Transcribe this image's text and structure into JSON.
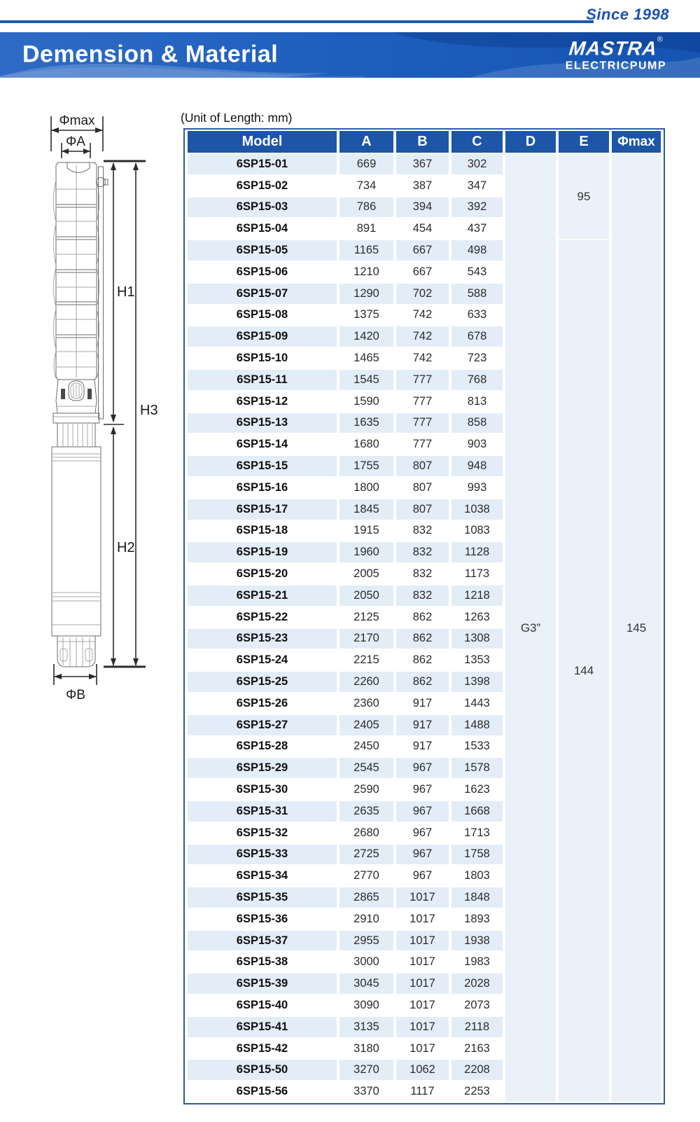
{
  "header": {
    "since": "Since 1998",
    "title": "Demension & Material",
    "brand": "MASTRA",
    "brand_registered": "®",
    "brand_sub": "ELECTRICPUMP"
  },
  "unit_note": "(Unit of Length: mm)",
  "diagram": {
    "labels": {
      "phi_max": "Φmax",
      "phi_a": "ΦA",
      "h1": "H1",
      "h3": "H3",
      "h2": "H2",
      "phi_b": "ΦB"
    }
  },
  "colors": {
    "accent_blue": "#1c57b2",
    "header_blue": "#1d55a7",
    "row_stripe_blue": "#e3edf8",
    "merged_cell_blue": "#eaf1f9"
  },
  "table": {
    "columns": [
      "Model",
      "A",
      "B",
      "C",
      "D",
      "E",
      "Φmax"
    ],
    "merged": {
      "d": "G3”",
      "e_top": "95",
      "e_top_rows": 4,
      "e_bottom": "144",
      "phi_max": "145"
    },
    "rows": [
      [
        "6SP15-01",
        "669",
        "367",
        "302"
      ],
      [
        "6SP15-02",
        "734",
        "387",
        "347"
      ],
      [
        "6SP15-03",
        "786",
        "394",
        "392"
      ],
      [
        "6SP15-04",
        "891",
        "454",
        "437"
      ],
      [
        "6SP15-05",
        "1165",
        "667",
        "498"
      ],
      [
        "6SP15-06",
        "1210",
        "667",
        "543"
      ],
      [
        "6SP15-07",
        "1290",
        "702",
        "588"
      ],
      [
        "6SP15-08",
        "1375",
        "742",
        "633"
      ],
      [
        "6SP15-09",
        "1420",
        "742",
        "678"
      ],
      [
        "6SP15-10",
        "1465",
        "742",
        "723"
      ],
      [
        "6SP15-11",
        "1545",
        "777",
        "768"
      ],
      [
        "6SP15-12",
        "1590",
        "777",
        "813"
      ],
      [
        "6SP15-13",
        "1635",
        "777",
        "858"
      ],
      [
        "6SP15-14",
        "1680",
        "777",
        "903"
      ],
      [
        "6SP15-15",
        "1755",
        "807",
        "948"
      ],
      [
        "6SP15-16",
        "1800",
        "807",
        "993"
      ],
      [
        "6SP15-17",
        "1845",
        "807",
        "1038"
      ],
      [
        "6SP15-18",
        "1915",
        "832",
        "1083"
      ],
      [
        "6SP15-19",
        "1960",
        "832",
        "1128"
      ],
      [
        "6SP15-20",
        "2005",
        "832",
        "1173"
      ],
      [
        "6SP15-21",
        "2050",
        "832",
        "1218"
      ],
      [
        "6SP15-22",
        "2125",
        "862",
        "1263"
      ],
      [
        "6SP15-23",
        "2170",
        "862",
        "1308"
      ],
      [
        "6SP15-24",
        "2215",
        "862",
        "1353"
      ],
      [
        "6SP15-25",
        "2260",
        "862",
        "1398"
      ],
      [
        "6SP15-26",
        "2360",
        "917",
        "1443"
      ],
      [
        "6SP15-27",
        "2405",
        "917",
        "1488"
      ],
      [
        "6SP15-28",
        "2450",
        "917",
        "1533"
      ],
      [
        "6SP15-29",
        "2545",
        "967",
        "1578"
      ],
      [
        "6SP15-30",
        "2590",
        "967",
        "1623"
      ],
      [
        "6SP15-31",
        "2635",
        "967",
        "1668"
      ],
      [
        "6SP15-32",
        "2680",
        "967",
        "1713"
      ],
      [
        "6SP15-33",
        "2725",
        "967",
        "1758"
      ],
      [
        "6SP15-34",
        "2770",
        "967",
        "1803"
      ],
      [
        "6SP15-35",
        "2865",
        "1017",
        "1848"
      ],
      [
        "6SP15-36",
        "2910",
        "1017",
        "1893"
      ],
      [
        "6SP15-37",
        "2955",
        "1017",
        "1938"
      ],
      [
        "6SP15-38",
        "3000",
        "1017",
        "1983"
      ],
      [
        "6SP15-39",
        "3045",
        "1017",
        "2028"
      ],
      [
        "6SP15-40",
        "3090",
        "1017",
        "2073"
      ],
      [
        "6SP15-41",
        "3135",
        "1017",
        "2118"
      ],
      [
        "6SP15-42",
        "3180",
        "1017",
        "2163"
      ],
      [
        "6SP15-50",
        "3270",
        "1062",
        "2208"
      ],
      [
        "6SP15-56",
        "3370",
        "1117",
        "2253"
      ]
    ]
  }
}
